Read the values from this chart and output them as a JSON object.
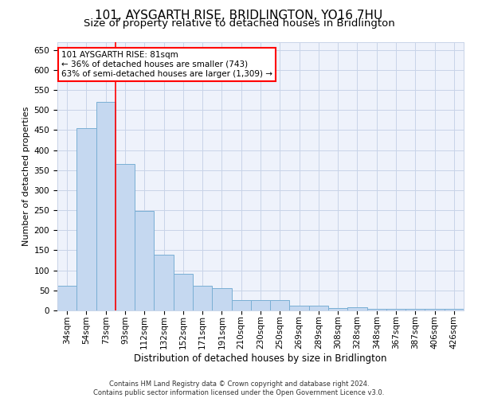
{
  "title": "101, AYSGARTH RISE, BRIDLINGTON, YO16 7HU",
  "subtitle": "Size of property relative to detached houses in Bridlington",
  "xlabel": "Distribution of detached houses by size in Bridlington",
  "ylabel": "Number of detached properties",
  "categories": [
    "34sqm",
    "54sqm",
    "73sqm",
    "93sqm",
    "112sqm",
    "132sqm",
    "152sqm",
    "171sqm",
    "191sqm",
    "210sqm",
    "230sqm",
    "250sqm",
    "269sqm",
    "289sqm",
    "308sqm",
    "328sqm",
    "348sqm",
    "367sqm",
    "387sqm",
    "406sqm",
    "426sqm"
  ],
  "values": [
    62,
    455,
    520,
    365,
    248,
    138,
    92,
    62,
    55,
    25,
    25,
    25,
    12,
    12,
    6,
    8,
    3,
    3,
    3,
    3,
    3
  ],
  "bar_color": "#c5d8f0",
  "bar_edge_color": "#7aafd4",
  "red_line_x": 2.5,
  "annotation_line1": "101 AYSGARTH RISE: 81sqm",
  "annotation_line2": "← 36% of detached houses are smaller (743)",
  "annotation_line3": "63% of semi-detached houses are larger (1,309) →",
  "annotation_box_color": "white",
  "annotation_box_edge_color": "red",
  "red_line_color": "red",
  "ylim": [
    0,
    670
  ],
  "yticks": [
    0,
    50,
    100,
    150,
    200,
    250,
    300,
    350,
    400,
    450,
    500,
    550,
    600,
    650
  ],
  "footnote1": "Contains HM Land Registry data © Crown copyright and database right 2024.",
  "footnote2": "Contains public sector information licensed under the Open Government Licence v3.0.",
  "bg_color": "#eef2fb",
  "grid_color": "#c8d4e8",
  "title_fontsize": 11,
  "subtitle_fontsize": 9.5,
  "xlabel_fontsize": 8.5,
  "ylabel_fontsize": 8,
  "tick_fontsize": 7.5,
  "annot_fontsize": 7.5,
  "footnote_fontsize": 6
}
